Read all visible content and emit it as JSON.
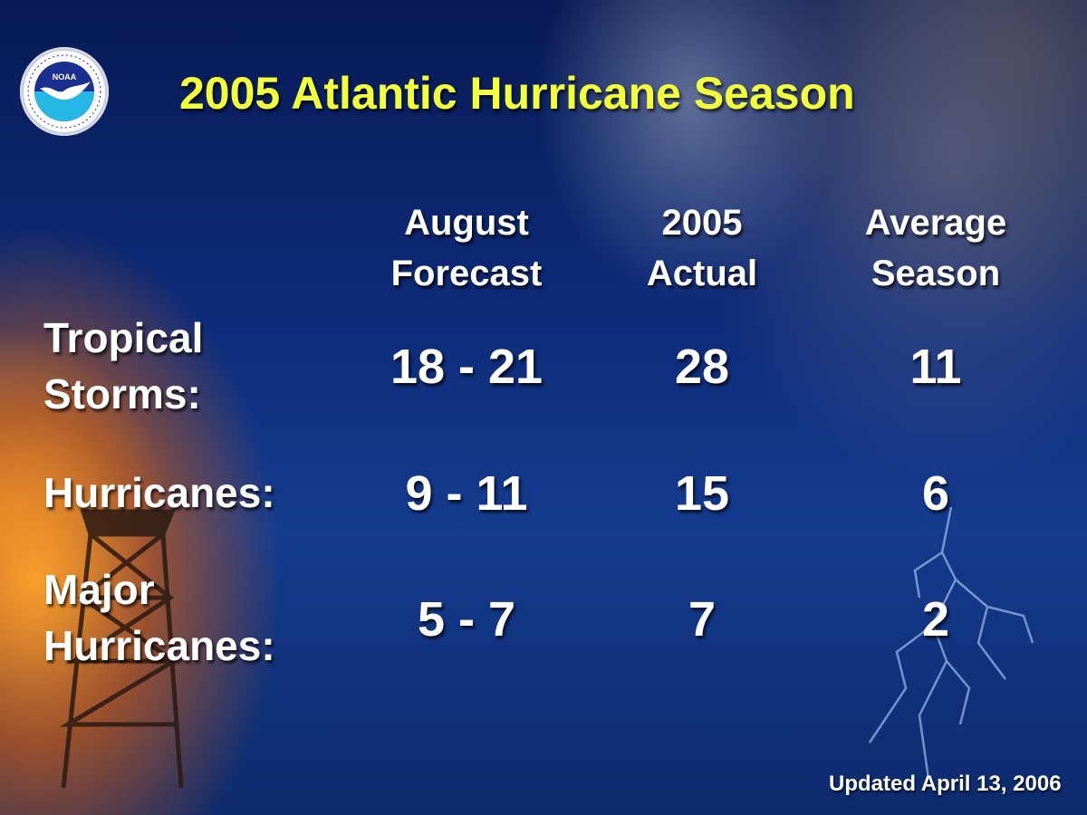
{
  "logo": {
    "icon": "noaa-logo-icon",
    "text": "NOAA"
  },
  "title": "2005 Atlantic Hurricane Season",
  "columns": [
    {
      "line1": "August",
      "line2": "Forecast"
    },
    {
      "line1": "2005",
      "line2": "Actual"
    },
    {
      "line1": "Average",
      "line2": "Season"
    }
  ],
  "rows": [
    {
      "label_line1": "Tropical",
      "label_line2": "Storms:",
      "values": [
        "18 - 21",
        "28",
        "11"
      ]
    },
    {
      "label_line1": "Hurricanes:",
      "label_line2": "",
      "values": [
        "9 - 11",
        "15",
        "6"
      ]
    },
    {
      "label_line1": "Major",
      "label_line2": "Hurricanes:",
      "values": [
        "5 - 7",
        "7",
        "2"
      ]
    }
  ],
  "footer": "Updated April 13, 2006",
  "colors": {
    "title": "#f2ff3a",
    "text": "#ffffff",
    "background": "#0e2c7a",
    "glow": "#ff9a2a"
  }
}
